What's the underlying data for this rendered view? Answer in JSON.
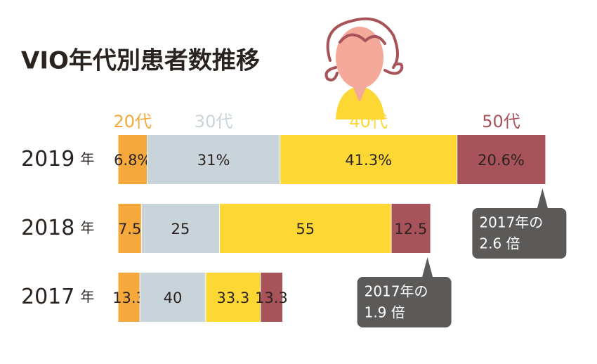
{
  "chart_data": {
    "type": "bar",
    "title": "VIO年代別患者数推移",
    "categories": [
      "2019",
      "2018",
      "2017"
    ],
    "category_unit": "年",
    "series": [
      {
        "name": "20代",
        "color": "#f5a93c",
        "values": [
          6.8,
          7.5,
          13.3
        ],
        "value_labels": [
          "6.8%",
          "7.5",
          "13.3"
        ]
      },
      {
        "name": "30代",
        "color": "#c9d4da",
        "values": [
          31,
          25,
          40
        ],
        "value_labels": [
          "31%",
          "25",
          "40"
        ]
      },
      {
        "name": "40代",
        "color": "#fdd835",
        "values": [
          41.3,
          55,
          33.3
        ],
        "value_labels": [
          "41.3%",
          "55",
          "33.3"
        ]
      },
      {
        "name": "50代",
        "color": "#a8525a",
        "values": [
          20.6,
          12.5,
          13.3
        ],
        "value_labels": [
          "20.6%",
          "12.5",
          "13.3"
        ]
      }
    ],
    "annotations": [
      {
        "category": "2019",
        "text": "2017年の",
        "ratio": 2.6,
        "ratio_label": "2.6 倍"
      },
      {
        "category": "2018",
        "text": "2017年の",
        "ratio": 1.9,
        "ratio_label": "1.9 倍"
      }
    ]
  }
}
